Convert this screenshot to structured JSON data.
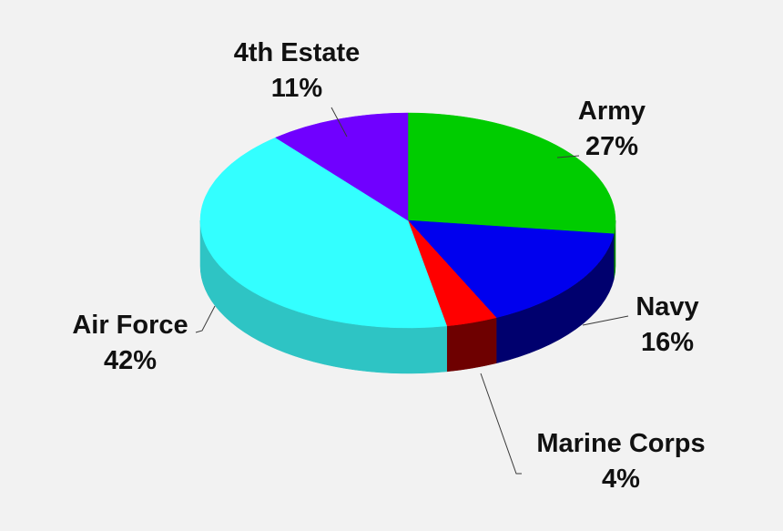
{
  "chart_data": {
    "type": "pie",
    "style": "3d",
    "title": "",
    "slices": [
      {
        "name": "Army",
        "value": 27,
        "pct_label": "27%",
        "color": "#00cc00",
        "side_color": "#008800"
      },
      {
        "name": "Navy",
        "value": 16,
        "pct_label": "16%",
        "color": "#0000ee",
        "side_color": "#00006e"
      },
      {
        "name": "Marine Corps",
        "value": 4,
        "pct_label": "4%",
        "color": "#ff0000",
        "side_color": "#6e0000"
      },
      {
        "name": "Air Force",
        "value": 42,
        "pct_label": "42%",
        "color": "#33ffff",
        "side_color": "#2ec4c4"
      },
      {
        "name": "4th Estate",
        "value": 11,
        "pct_label": "11%",
        "color": "#7000ff",
        "side_color": "#4a00aa"
      }
    ],
    "legend": "none",
    "labels": "outside-with-leader-lines"
  }
}
